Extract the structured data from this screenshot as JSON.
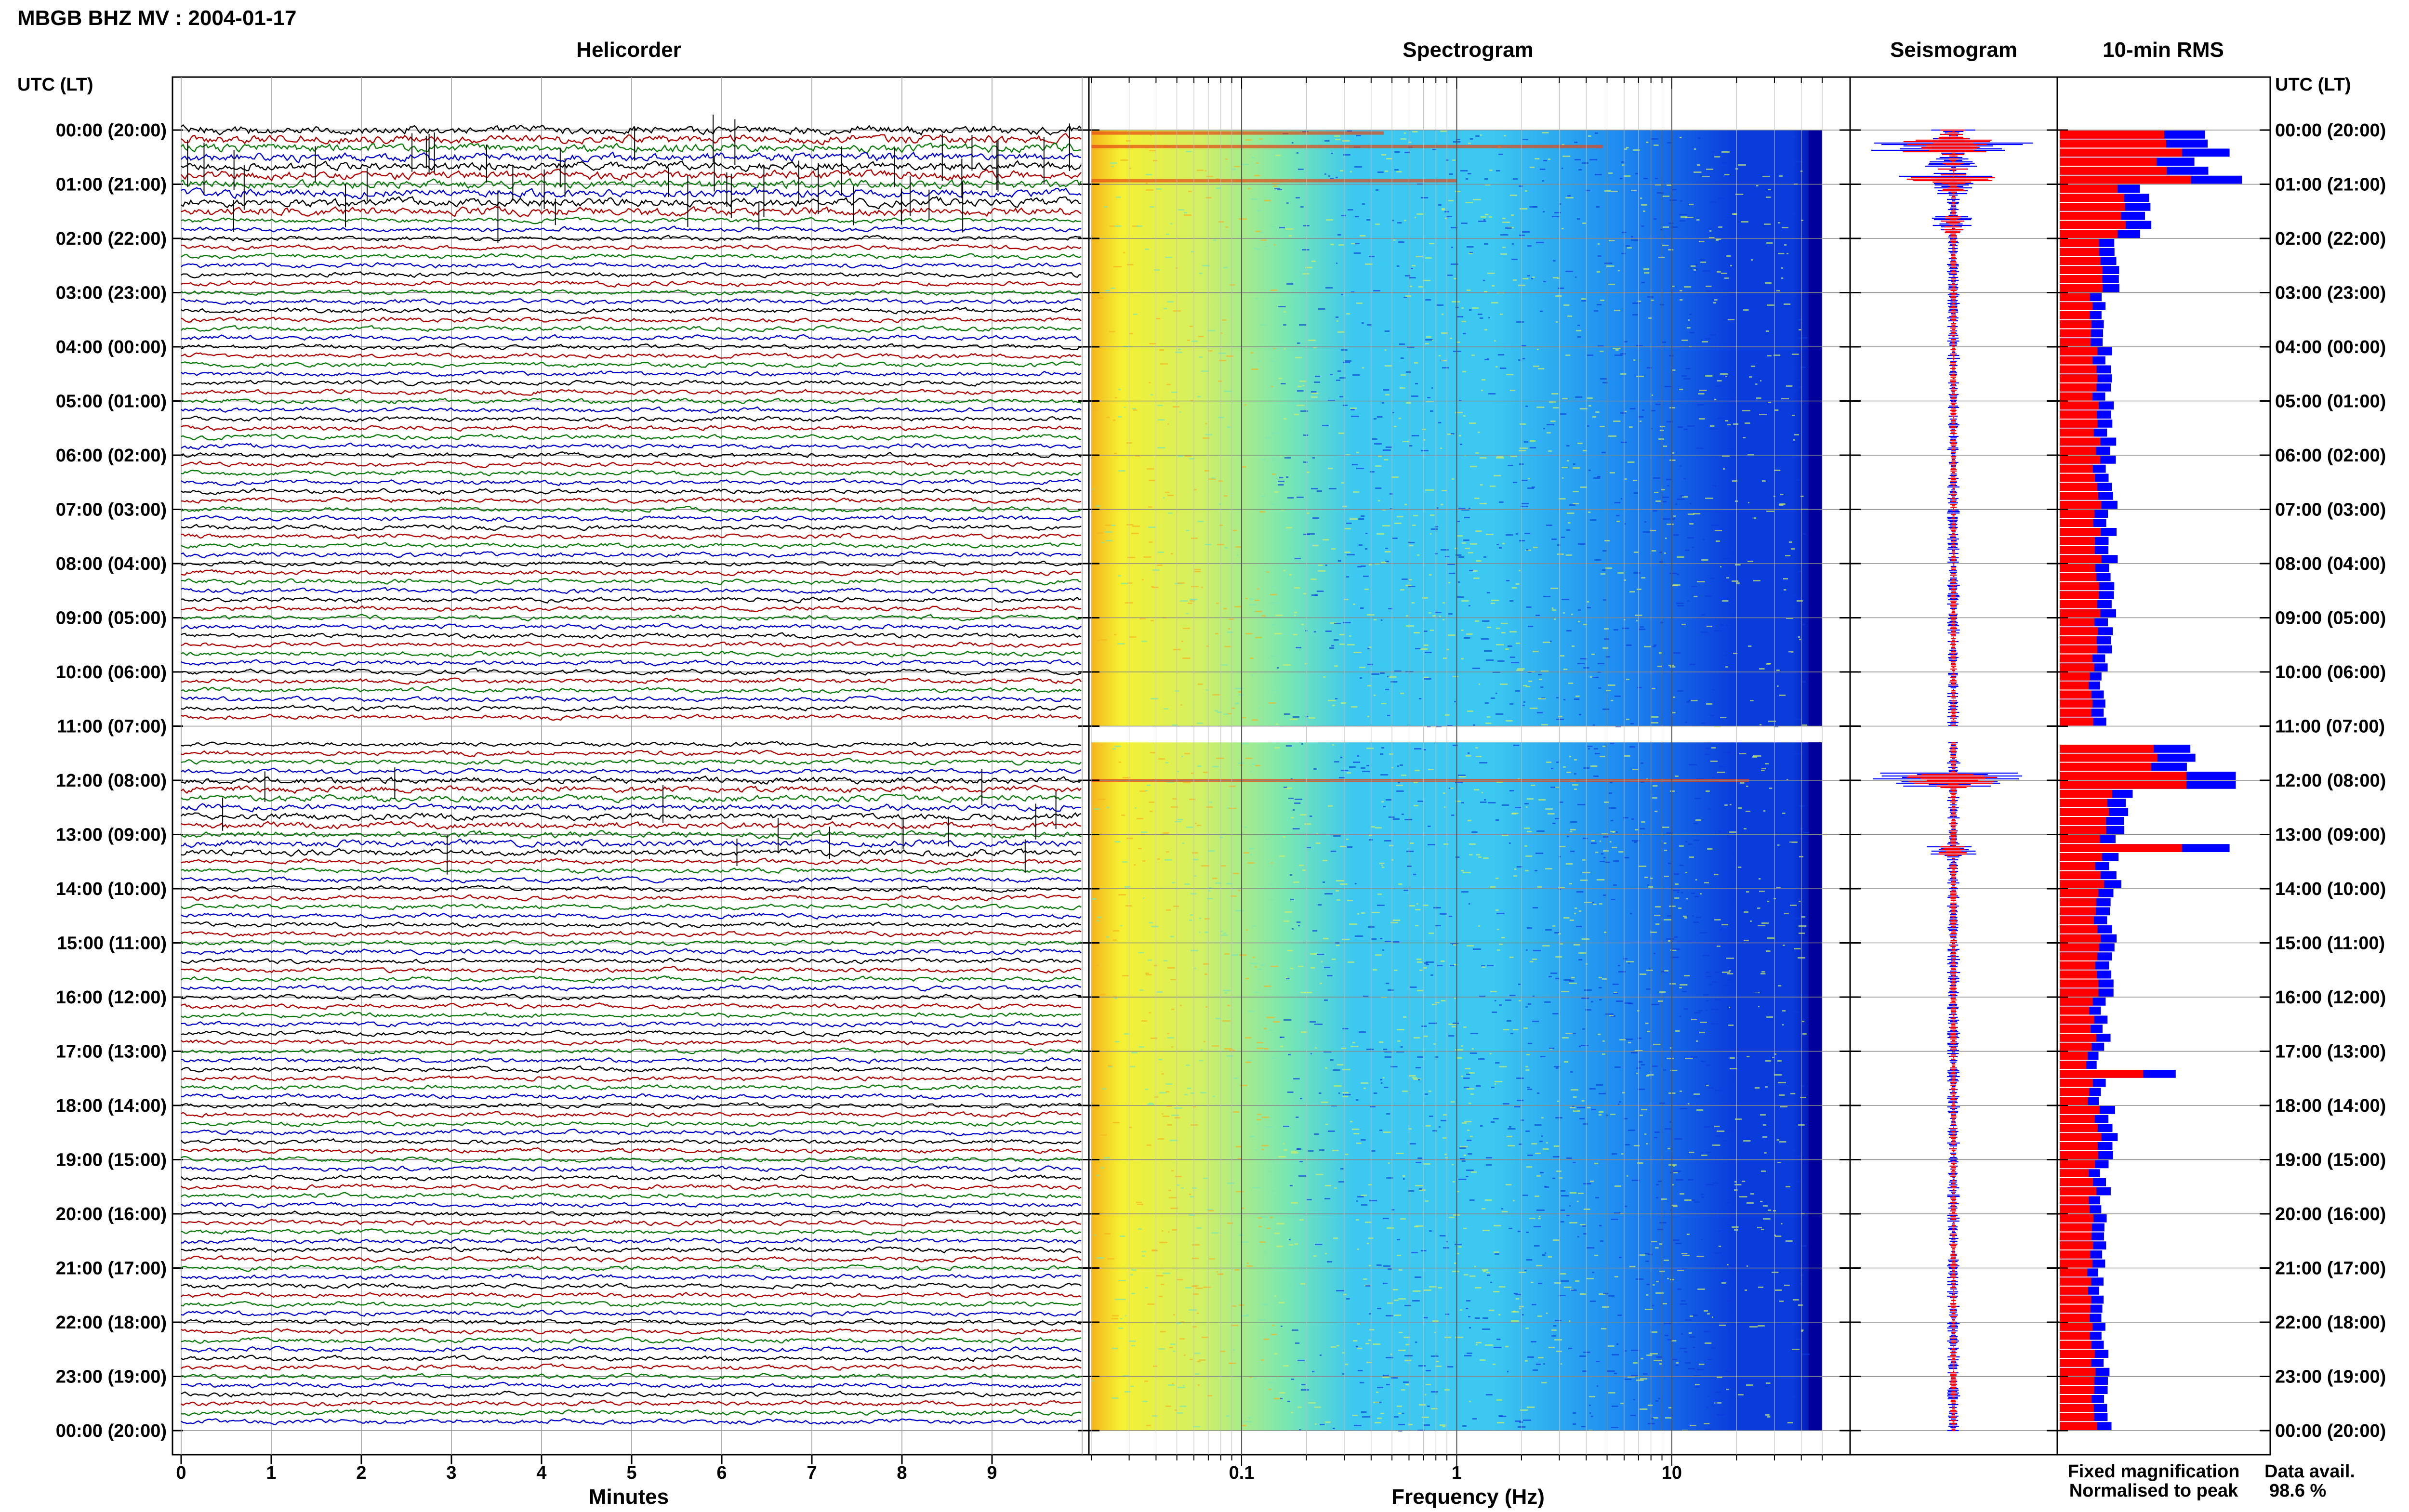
{
  "title": "MBGB BHZ MV : 2004-01-17",
  "headers": {
    "helicorder": "Helicorder",
    "spectrogram": "Spectrogram",
    "seismogram": "Seismogram",
    "rms": "10-min RMS"
  },
  "time_axis": {
    "label_left": "UTC (LT)",
    "label_right": "UTC (LT)",
    "ticks": [
      "00:00 (20:00)",
      "01:00 (21:00)",
      "02:00 (22:00)",
      "03:00 (23:00)",
      "04:00 (00:00)",
      "05:00 (01:00)",
      "06:00 (02:00)",
      "07:00 (03:00)",
      "08:00 (04:00)",
      "09:00 (05:00)",
      "10:00 (06:00)",
      "11:00 (07:00)",
      "12:00 (08:00)",
      "13:00 (09:00)",
      "14:00 (10:00)",
      "15:00 (11:00)",
      "16:00 (12:00)",
      "17:00 (13:00)",
      "18:00 (14:00)",
      "19:00 (15:00)",
      "20:00 (16:00)",
      "21:00 (17:00)",
      "22:00 (18:00)",
      "23:00 (19:00)",
      "00:00 (20:00)"
    ]
  },
  "chart_data": [
    {
      "type": "line",
      "panel": "Helicorder",
      "xlabel": "Minutes",
      "x_ticks": [
        "0",
        "1",
        "2",
        "3",
        "4",
        "5",
        "6",
        "7",
        "8",
        "9"
      ],
      "xlim": [
        0,
        10
      ],
      "rows_per_hour": 6,
      "trace_colors": [
        "#000000",
        "#b00000",
        "#0a7a0a",
        "#0000cc"
      ],
      "data_gap_hours": [
        11.0,
        11.3
      ]
    },
    {
      "type": "heatmap",
      "panel": "Spectrogram",
      "xlabel": "Frequency (Hz)",
      "x_scale": "log",
      "x_ticks": [
        "0.1",
        "1",
        "10"
      ],
      "xlim": [
        0.02,
        50
      ],
      "colormap": [
        "#00009a",
        "#0a3cdc",
        "#1e8cf0",
        "#3cc8f0",
        "#78e6b4",
        "#d2f064",
        "#f5f032",
        "#f5b41e",
        "#e64614"
      ],
      "data_gap_hours": [
        11.0,
        11.3
      ]
    },
    {
      "type": "line",
      "panel": "Seismogram",
      "series": [
        {
          "name": "Fixed magnification",
          "color": "#0000ff"
        },
        {
          "name": "Normalised to peak",
          "color": "#ff0000"
        }
      ]
    },
    {
      "type": "bar",
      "panel": "10-min RMS",
      "orientation": "horizontal",
      "series": [
        {
          "name": "Fixed magnification",
          "color": "#0000ff"
        },
        {
          "name": "Normalised to peak",
          "color": "#ff0000"
        }
      ],
      "hour_values": [
        0.72,
        0.4,
        0.26,
        0.22,
        0.23,
        0.25,
        0.25,
        0.25,
        0.25,
        0.23,
        0.22,
        0.6,
        0.34,
        0.27,
        0.25,
        0.24,
        0.22,
        0.2,
        0.26,
        0.22,
        0.22,
        0.21,
        0.22,
        0.24
      ],
      "events": [
        {
          "hour": 0.45,
          "value": 0.82
        },
        {
          "hour": 0.95,
          "value": 0.88
        },
        {
          "hour": 12.0,
          "value": 0.85
        },
        {
          "hour": 13.25,
          "value": 0.82
        },
        {
          "hour": 17.4,
          "value": 0.56
        }
      ]
    }
  ],
  "legend": {
    "fixed": "Fixed magnification",
    "normalised": "Normalised to peak"
  },
  "availability": {
    "label": "Data avail.",
    "value": "98.6 %"
  },
  "colors": {
    "fixed": "#0000ff",
    "normalised": "#ff0000"
  }
}
